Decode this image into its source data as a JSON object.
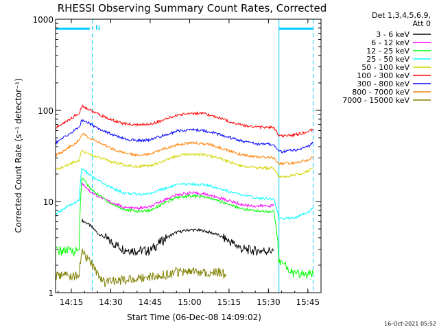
{
  "chart_data": {
    "type": "line",
    "title": "RHESSI Observing Summary Count Rates, Corrected",
    "xlabel": "Start Time (06-Dec-08 14:09:02)",
    "ylabel": "Corrected Count Rate (s⁻¹ detector⁻¹)",
    "yscale": "log",
    "ylim": [
      1,
      1000
    ],
    "xlim": [
      "14:09",
      "15:50"
    ],
    "x_ticks": [
      "14:15",
      "14:30",
      "14:45",
      "15:00",
      "15:15",
      "15:30",
      "15:45"
    ],
    "y_ticks": [
      "1",
      "10",
      "100",
      "1000"
    ],
    "grid": false,
    "legend_position": "top-right",
    "legend_header": [
      "Det 1,3,4,5,6,9,",
      "Att 0"
    ],
    "night_flag": "N",
    "markers": [
      {
        "time": "14:09",
        "color": "#00ccff",
        "style": "solid"
      },
      {
        "time": "14:23",
        "color": "#00ccff",
        "style": "dashed"
      },
      {
        "time": "15:34",
        "color": "#00ccff",
        "style": "solid"
      },
      {
        "time": "15:47",
        "color": "#00ccff",
        "style": "dashed"
      }
    ],
    "flag_bars": [
      {
        "start": "14:09",
        "end": "14:22"
      },
      {
        "start": "15:34",
        "end": "15:47"
      }
    ],
    "series": [
      {
        "name": "3 - 6 keV",
        "color": "#000000",
        "x": [
          "14:19",
          "14:20",
          "14:22",
          "14:25",
          "14:30",
          "14:35",
          "14:40",
          "14:45",
          "14:50",
          "14:55",
          "15:00",
          "15:05",
          "15:10",
          "15:15",
          "15:20",
          "15:25",
          "15:30",
          "15:32"
        ],
        "values": [
          6.2,
          6,
          5.5,
          4.5,
          3.6,
          3.0,
          2.9,
          2.9,
          3.8,
          4.6,
          4.9,
          4.8,
          4.4,
          3.7,
          3.0,
          2.9,
          2.9,
          2.9
        ]
      },
      {
        "name": "6 - 12 keV",
        "color": "#ff00ff",
        "x": [
          "14:19",
          "14:20",
          "14:22",
          "14:25",
          "14:30",
          "14:35",
          "14:40",
          "14:45",
          "14:50",
          "14:55",
          "15:00",
          "15:05",
          "15:10",
          "15:15",
          "15:20",
          "15:25",
          "15:30",
          "15:32"
        ],
        "values": [
          16,
          15,
          13,
          11.5,
          9.8,
          8.6,
          8.4,
          8.7,
          10.3,
          11.8,
          12.4,
          12.2,
          11.2,
          10.2,
          9.2,
          8.9,
          9.0,
          9.0
        ]
      },
      {
        "name": "12 - 25 keV",
        "color": "#00ff00",
        "x": [
          "14:09",
          "14:12",
          "14:15",
          "14:18",
          "14:19",
          "14:20",
          "14:22",
          "14:25",
          "14:30",
          "14:35",
          "14:40",
          "14:45",
          "14:50",
          "14:55",
          "15:00",
          "15:05",
          "15:10",
          "15:15",
          "15:20",
          "15:25",
          "15:30",
          "15:32",
          "15:34",
          "15:40",
          "15:45",
          "15:47"
        ],
        "values": [
          2.9,
          2.9,
          2.9,
          2.9,
          18,
          17,
          14,
          12,
          9.5,
          8.2,
          7.8,
          8.0,
          9.5,
          11.0,
          11.6,
          11.3,
          10.4,
          9.3,
          8.3,
          7.9,
          7.8,
          7.8,
          2.2,
          1.6,
          1.6,
          1.6
        ]
      },
      {
        "name": "25 - 50 keV",
        "color": "#00ffff",
        "x": [
          "14:09",
          "14:12",
          "14:15",
          "14:18",
          "14:19",
          "14:20",
          "14:22",
          "14:25",
          "14:30",
          "14:35",
          "14:40",
          "14:45",
          "14:50",
          "14:55",
          "15:00",
          "15:05",
          "15:10",
          "15:15",
          "15:20",
          "15:25",
          "15:30",
          "15:32",
          "15:34",
          "15:40",
          "15:45",
          "15:47"
        ],
        "values": [
          7.2,
          8.3,
          9.2,
          10.5,
          23,
          22,
          19.5,
          17,
          14.2,
          12.4,
          12.0,
          12.2,
          13.8,
          15.2,
          15.6,
          15.3,
          14.3,
          12.9,
          11.7,
          11.0,
          10.8,
          10.7,
          6.4,
          6.7,
          7.6,
          8.5
        ]
      },
      {
        "name": "50 - 100 keV",
        "color": "#d4d400",
        "x": [
          "14:09",
          "14:12",
          "14:15",
          "14:18",
          "14:19",
          "14:20",
          "14:22",
          "14:25",
          "14:30",
          "14:35",
          "14:40",
          "14:45",
          "14:50",
          "14:55",
          "15:00",
          "15:05",
          "15:10",
          "15:15",
          "15:20",
          "15:25",
          "15:30",
          "15:32",
          "15:34",
          "15:40",
          "15:45",
          "15:47"
        ],
        "values": [
          22,
          24,
          26.5,
          28.5,
          37,
          35,
          32.5,
          30.5,
          27.5,
          25.2,
          24.3,
          24.5,
          27.5,
          31.5,
          33.2,
          32.8,
          30.6,
          27.3,
          24.6,
          23.5,
          23.2,
          23.2,
          18.5,
          19.5,
          21.5,
          23.5
        ]
      },
      {
        "name": "100 - 300 keV",
        "color": "#ff0000",
        "x": [
          "14:09",
          "14:12",
          "14:15",
          "14:18",
          "14:19",
          "14:20",
          "14:22",
          "14:25",
          "14:30",
          "14:35",
          "14:40",
          "14:45",
          "14:50",
          "14:55",
          "15:00",
          "15:05",
          "15:10",
          "15:15",
          "15:20",
          "15:25",
          "15:30",
          "15:32",
          "15:34",
          "15:40",
          "15:45",
          "15:47"
        ],
        "values": [
          64,
          72,
          82,
          92,
          112,
          109,
          101,
          91,
          79,
          71.5,
          69,
          70.5,
          78,
          88,
          93,
          92,
          85,
          75.5,
          68.5,
          66,
          65,
          65,
          52,
          54,
          58,
          62
        ]
      },
      {
        "name": "300 - 800 keV",
        "color": "#0000ff",
        "x": [
          "14:09",
          "14:12",
          "14:15",
          "14:18",
          "14:19",
          "14:20",
          "14:22",
          "14:25",
          "14:30",
          "14:35",
          "14:40",
          "14:45",
          "14:50",
          "14:55",
          "15:00",
          "15:05",
          "15:10",
          "15:15",
          "15:20",
          "15:25",
          "15:30",
          "15:32",
          "15:34",
          "15:40",
          "15:45",
          "15:47"
        ],
        "values": [
          44,
          50,
          57,
          65,
          79,
          77,
          71,
          64,
          55,
          48.5,
          46.5,
          47.5,
          53,
          59,
          61.5,
          60.5,
          56,
          50.5,
          46,
          43,
          42.5,
          42.5,
          35,
          36.5,
          40,
          44
        ]
      },
      {
        "name": "800 - 7000 keV",
        "color": "#ff8000",
        "x": [
          "14:09",
          "14:12",
          "14:15",
          "14:18",
          "14:19",
          "14:20",
          "14:22",
          "14:25",
          "14:30",
          "14:35",
          "14:40",
          "14:45",
          "14:50",
          "14:55",
          "15:00",
          "15:05",
          "15:10",
          "15:15",
          "15:20",
          "15:25",
          "15:30",
          "15:32",
          "15:34",
          "15:40",
          "15:45",
          "15:47"
        ],
        "values": [
          32,
          36,
          41,
          47,
          56,
          54,
          50,
          45,
          38.5,
          34,
          32.5,
          33,
          37.5,
          42,
          44,
          43.5,
          40.5,
          36,
          32.5,
          31,
          30.5,
          30.5,
          26,
          26.5,
          28.5,
          31
        ]
      },
      {
        "name": "7000 - 15000 keV",
        "color": "#808000",
        "x": [
          "14:09",
          "14:12",
          "14:15",
          "14:18",
          "14:19",
          "14:20",
          "14:22",
          "14:25",
          "14:28",
          "14:52",
          "14:55",
          "15:00",
          "15:05",
          "15:10",
          "15:14"
        ],
        "values": [
          1.5,
          1.6,
          1.5,
          1.6,
          2.8,
          2.6,
          2.2,
          1.6,
          1.3,
          1.6,
          1.7,
          1.7,
          1.7,
          1.7,
          1.6
        ]
      }
    ]
  },
  "footer_stamp": "16-Oct-2021 05:52"
}
